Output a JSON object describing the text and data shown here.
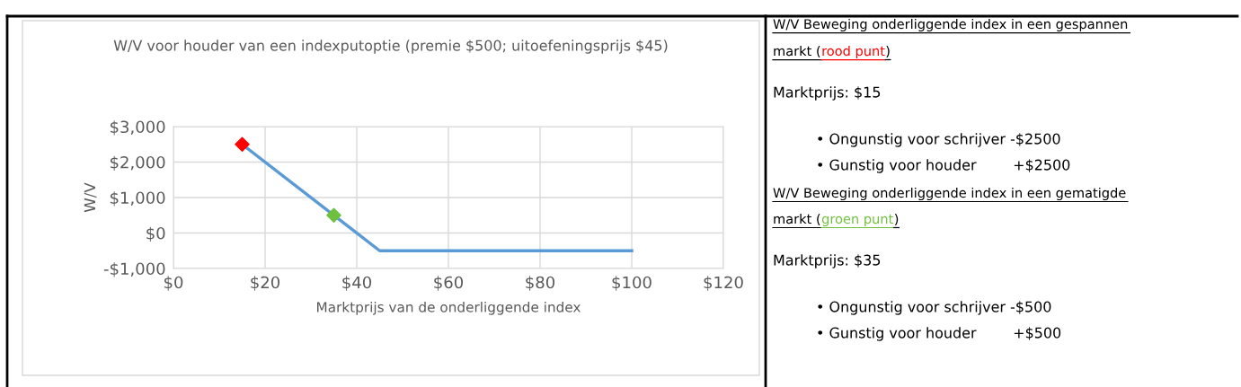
{
  "chart_data": [
    {
      "type": "line",
      "title": "W/V voor houder van een indexputoptie (premie $500; uitoefeningsprijs $45)",
      "xlabel": "Marktprijs van de onderliggende index",
      "ylabel": "W/V",
      "series": [
        {
          "type": "line",
          "color": "#5b9bd5",
          "x": [
            15,
            45,
            100
          ],
          "values": [
            2500,
            -500,
            -500
          ],
          "marker": "none"
        },
        {
          "type": "scatter",
          "color": "#ff0000",
          "x": [
            15
          ],
          "values": [
            2500
          ],
          "marker": "diamond"
        },
        {
          "type": "scatter",
          "color": "#70c040",
          "x": [
            35
          ],
          "values": [
            500
          ],
          "marker": "diamond"
        }
      ],
      "xlim": [
        0,
        120
      ],
      "xticks": [
        {
          "value": 0,
          "label": "$0"
        },
        {
          "value": 20,
          "label": "$20"
        },
        {
          "value": 40,
          "label": "$40"
        },
        {
          "value": 60,
          "label": "$60"
        },
        {
          "value": 80,
          "label": "$80"
        },
        {
          "value": 100,
          "label": "$100"
        },
        {
          "value": 120,
          "label": "$120"
        }
      ],
      "ylim": [
        -1000,
        3000
      ],
      "yticks": [
        {
          "value": -1000,
          "label": "-$1,000"
        },
        {
          "value": 0,
          "label": "$0"
        },
        {
          "value": 1000,
          "label": "$1,000"
        },
        {
          "value": 2000,
          "label": "$2,000"
        },
        {
          "value": 3000,
          "label": "$3,000"
        }
      ],
      "grid": true,
      "legend": false
    },
    {
      "type": "other",
      "annotations": [
        "W/V Beweging onderliggende index in een gespannen",
        "markt (",
        "rood punt",
        ")",
        "Marktprijs: $15",
        "• Ongunstig voor schrijver -$2500",
        "• Gunstig voor houder        +$2500",
        "W/V Beweging onderliggende index in een gematigde",
        "markt (",
        "groen punt",
        ")",
        "Marktprijs: $35",
        "• Ongunstig voor schrijver -$500",
        "• Gunstig voor houder        +$500"
      ]
    }
  ]
}
